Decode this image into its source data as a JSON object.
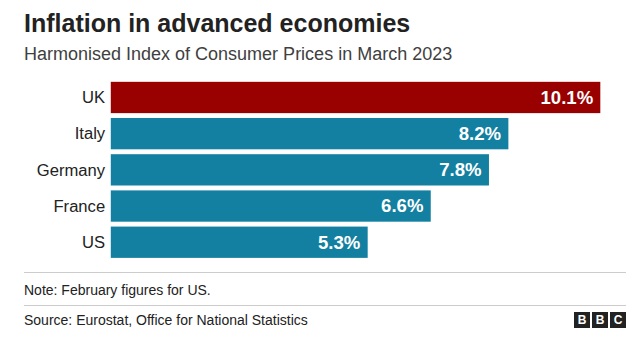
{
  "chart_data": {
    "type": "bar",
    "orientation": "horizontal",
    "title": "Inflation in advanced economies",
    "subtitle": "Harmonised Index of Consumer Prices in March 2023",
    "categories": [
      "UK",
      "Italy",
      "Germany",
      "France",
      "US"
    ],
    "values": [
      10.1,
      8.2,
      7.8,
      6.6,
      5.3
    ],
    "value_labels": [
      "10.1%",
      "8.2%",
      "7.8%",
      "6.6%",
      "5.3%"
    ],
    "colors": [
      "#990000",
      "#1380a1",
      "#1380a1",
      "#1380a1",
      "#1380a1"
    ],
    "xlim": [
      0,
      10.1
    ],
    "data_labels": true,
    "tick_labels": "y",
    "grid": false,
    "note": "Note: February figures for US.",
    "source": "Source: Eurostat, Office for National Statistics",
    "logo": "BBC"
  }
}
